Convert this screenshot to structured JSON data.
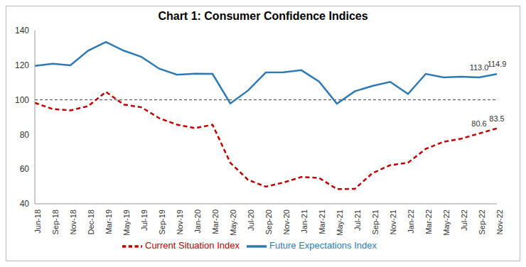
{
  "chart_data": {
    "type": "line",
    "title": "Chart 1: Consumer Confidence Indices",
    "categories": [
      "Jun-18",
      "Sep-18",
      "Nov-18",
      "Dec-18",
      "Mar-19",
      "May-19",
      "Jul-19",
      "Sep-19",
      "Nov-19",
      "Jan-20",
      "Mar-20",
      "May-20",
      "Jul-20",
      "Sep-20",
      "Nov-20",
      "Jan-21",
      "Mar-21",
      "May-21",
      "Jul-21",
      "Sep-21",
      "Nov-21",
      "Jan-22",
      "Mar-22",
      "May-22",
      "Jul-22",
      "Sep-22",
      "Nov-22"
    ],
    "series": [
      {
        "name": "Current Situation Index",
        "color": "#c00000",
        "line_style": "dashed",
        "values": [
          98.3,
          94.7,
          93.9,
          96.4,
          104.6,
          97.3,
          95.7,
          89.4,
          85.7,
          83.7,
          85.6,
          63.7,
          53.8,
          49.9,
          52.3,
          55.5,
          54.9,
          48.5,
          48.6,
          57.7,
          62.3,
          63.7,
          71.7,
          75.8,
          77.6,
          80.6,
          83.5
        ]
      },
      {
        "name": "Future Expectations Index",
        "color": "#2e7bb4",
        "line_style": "solid",
        "values": [
          119.6,
          120.8,
          119.9,
          128.4,
          133.4,
          128.4,
          124.8,
          118.0,
          114.5,
          115.1,
          115.0,
          97.9,
          105.4,
          115.8,
          115.9,
          117.1,
          110.5,
          97.8,
          104.9,
          108.0,
          110.4,
          103.4,
          115.0,
          113.0,
          113.4,
          113.0,
          114.9
        ]
      }
    ],
    "ylim": [
      40,
      140
    ],
    "yticks": [
      40,
      60,
      80,
      100,
      120,
      140
    ],
    "grid": false,
    "legend": "bottom",
    "hline": 100,
    "annotations": [
      {
        "x": "Sep-22",
        "value": 80.6,
        "label": "80.6"
      },
      {
        "x": "Nov-22",
        "value": 83.5,
        "label": "83.5"
      },
      {
        "x": "Sep-22",
        "value": 113.0,
        "label": "113.0"
      },
      {
        "x": "Nov-22",
        "value": 114.9,
        "label": "114.9"
      }
    ]
  }
}
